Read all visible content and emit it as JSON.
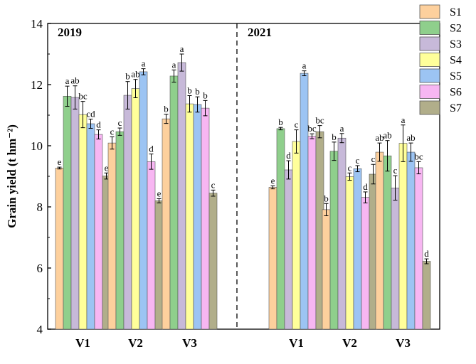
{
  "chart_data": {
    "type": "bar",
    "title": "",
    "xlabel": "",
    "ylabel": "Grain yield (t hm⁻²)",
    "ylim": [
      4,
      14
    ],
    "yticks": [
      "4",
      "6",
      "8",
      "10",
      "12",
      "14"
    ],
    "ytick_values": [
      4,
      6,
      8,
      10,
      12,
      14
    ],
    "panels": [
      {
        "label": "2019",
        "groups": [
          {
            "name": "V1",
            "values": [
              9.27,
              11.62,
              11.58,
              11.02,
              10.72,
              10.37,
              9.01
            ],
            "errors": [
              0.03,
              0.33,
              0.38,
              0.43,
              0.15,
              0.15,
              0.1
            ],
            "letters": [
              "e",
              "a",
              "ab",
              "bc",
              "cd",
              "d",
              "e"
            ]
          },
          {
            "name": "V2",
            "values": [
              10.09,
              10.46,
              11.65,
              11.87,
              12.42,
              9.48,
              8.2
            ],
            "errors": [
              0.2,
              0.12,
              0.45,
              0.3,
              0.1,
              0.25,
              0.07
            ],
            "letters": [
              "c",
              "c",
              "b",
              "ab",
              "a",
              "d",
              "e"
            ]
          },
          {
            "name": "V3",
            "values": [
              10.88,
              12.28,
              12.72,
              11.37,
              11.35,
              11.23,
              8.45
            ],
            "errors": [
              0.15,
              0.2,
              0.28,
              0.27,
              0.25,
              0.25,
              0.1
            ],
            "letters": [
              "b",
              "a",
              "a",
              "b",
              "b",
              "b",
              "c"
            ]
          }
        ]
      },
      {
        "label": "2021",
        "groups": [
          {
            "name": "V1",
            "values": [
              8.64,
              10.56,
              9.21,
              10.14,
              12.37,
              10.31,
              10.46
            ],
            "errors": [
              0.05,
              0.04,
              0.3,
              0.38,
              0.08,
              0.08,
              0.2
            ],
            "letters": [
              "e",
              "b",
              "d",
              "c",
              "a",
              "bc",
              "bc"
            ]
          },
          {
            "name": "V2",
            "values": [
              7.91,
              9.82,
              10.25,
              8.99,
              9.25,
              8.31,
              9.07
            ],
            "errors": [
              0.2,
              0.3,
              0.15,
              0.12,
              0.1,
              0.18,
              0.32
            ],
            "letters": [
              "b",
              "b",
              "a",
              "c",
              "c",
              "d",
              "c"
            ]
          },
          {
            "name": "V3",
            "values": [
              9.79,
              9.67,
              8.62,
              10.08,
              9.79,
              9.28,
              6.22
            ],
            "errors": [
              0.3,
              0.5,
              0.4,
              0.6,
              0.3,
              0.2,
              0.08
            ],
            "letters": [
              "ab",
              "ab",
              "c",
              "a",
              "ab",
              "bc",
              "d"
            ]
          }
        ]
      }
    ],
    "series": [
      {
        "name": "S1",
        "color": "#fdd09d"
      },
      {
        "name": "S2",
        "color": "#8fcf8c"
      },
      {
        "name": "S3",
        "color": "#c7b9d9"
      },
      {
        "name": "S4",
        "color": "#ffff9a"
      },
      {
        "name": "S5",
        "color": "#9cc4f3"
      },
      {
        "name": "S6",
        "color": "#f7b6f2"
      },
      {
        "name": "S7",
        "color": "#b1ae8a"
      }
    ],
    "legend_position": "top-right",
    "separator": "dashed vertical line between 2019 and 2021"
  }
}
